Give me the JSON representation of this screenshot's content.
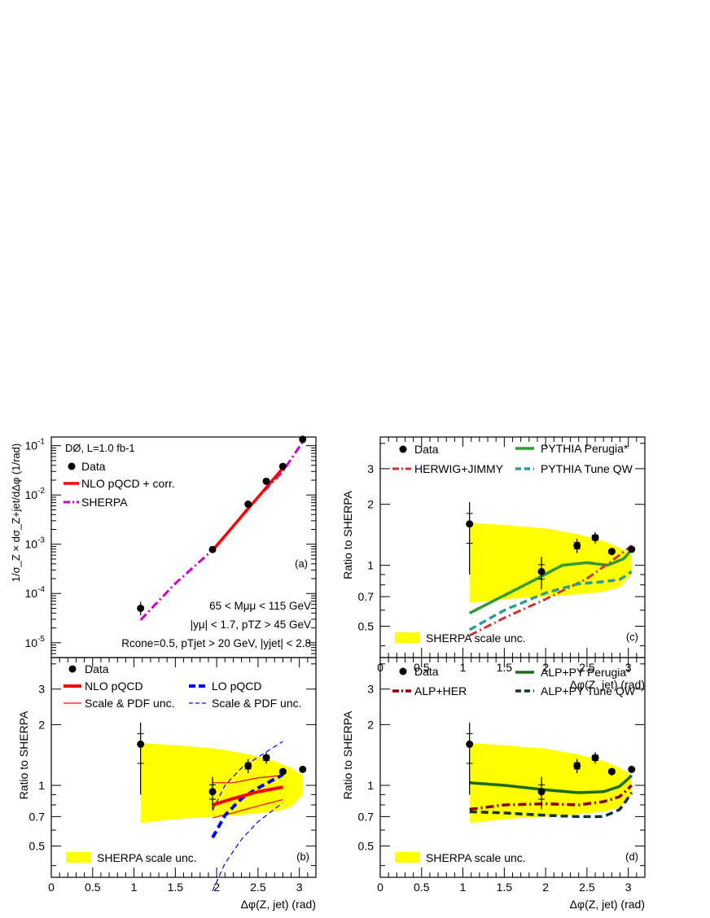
{
  "colors": {
    "yellow_band": "#ffff00",
    "red": "#ff0000",
    "magenta": "#cc00cc",
    "blue": "#0000ff",
    "green": "#339933",
    "darkgreen": "#1a6b1a",
    "teal": "#339999",
    "brownred": "#cc3333",
    "darkred": "#8b0000",
    "darkslate": "#0d3333"
  },
  "x_axis": {
    "label": "Δφ(Z, jet) (rad)",
    "ticks": [
      "0",
      "0.5",
      "1",
      "1.5",
      "2",
      "2.5",
      "3"
    ]
  },
  "chart_data": [
    {
      "id": "a",
      "type": "scatter",
      "panel_label": "(a)",
      "ylabel": "1/σ_Z × dσ_Z+jet/dΔφ (1/rad)",
      "yscale": "log",
      "ylim": [
        5e-06,
        0.15
      ],
      "xlim": [
        0,
        3.2
      ],
      "ytick_labels": [
        "10^-5",
        "10^-4",
        "10^-3",
        "10^-2",
        "10^-1"
      ],
      "experiment": "DØ, L=1.0 fb-1",
      "cuts": [
        "65 < Mμμ < 115 GeV",
        "|yμ| < 1.7, pTZ > 45 GeV",
        "Rcone=0.5, pTjet > 20 GeV, |yjet| < 2.8"
      ],
      "legend": [
        "Data",
        "NLO pQCD + corr.",
        "SHERPA"
      ],
      "data": {
        "x": [
          1.08,
          1.95,
          2.38,
          2.6,
          2.8,
          3.04
        ],
        "y": [
          5e-05,
          0.00078,
          0.0065,
          0.019,
          0.038,
          0.135
        ]
      },
      "nlo": {
        "x": [
          1.95,
          2.8
        ],
        "y": [
          0.00075,
          0.035
        ]
      },
      "sherpa": {
        "x": [
          1.08,
          1.5,
          2.0,
          2.4,
          2.8,
          3.04
        ],
        "y": [
          2.9e-05,
          0.00016,
          0.0009,
          0.006,
          0.03,
          0.12
        ]
      }
    },
    {
      "id": "b",
      "type": "line",
      "panel_label": "(b)",
      "ylabel": "Ratio to SHERPA",
      "yscale": "log",
      "ylim": [
        0.35,
        4.3
      ],
      "xlim": [
        0,
        3.2
      ],
      "ytick_labels": [
        "0.5",
        "0.7",
        "1",
        "2",
        "3"
      ],
      "legend": [
        "Data",
        "NLO pQCD",
        "Scale & PDF unc.",
        "LO pQCD",
        "Scale & PDF unc."
      ],
      "band_label": "SHERPA scale unc.",
      "band": {
        "x": [
          1.08,
          1.5,
          2.0,
          2.4,
          2.7,
          2.9,
          3.04
        ],
        "upper": [
          1.62,
          1.58,
          1.52,
          1.42,
          1.32,
          1.22,
          1.12
        ],
        "lower": [
          0.65,
          0.68,
          0.7,
          0.72,
          0.74,
          0.78,
          0.9
        ]
      },
      "data": {
        "x": [
          1.08,
          1.95,
          2.38,
          2.6,
          2.8,
          3.04
        ],
        "y": [
          1.6,
          0.93,
          1.25,
          1.37,
          1.17,
          1.2
        ],
        "yerr_up": [
          0.45,
          0.17,
          0.1,
          0.09,
          0.05,
          0.02
        ],
        "yerr_dn": [
          0.7,
          0.17,
          0.1,
          0.09,
          0.05,
          0.02
        ]
      },
      "nlo": {
        "x": [
          1.95,
          2.2,
          2.5,
          2.8
        ],
        "y": [
          0.8,
          0.86,
          0.93,
          0.98
        ]
      },
      "nlo_up": {
        "x": [
          1.95,
          2.2,
          2.5,
          2.8
        ],
        "y": [
          1.03,
          1.03,
          1.09,
          1.12
        ]
      },
      "nlo_dn": {
        "x": [
          1.95,
          2.2,
          2.5,
          2.8
        ],
        "y": [
          0.69,
          0.73,
          0.79,
          0.85
        ]
      },
      "lo": {
        "x": [
          1.95,
          2.1,
          2.3,
          2.5,
          2.8
        ],
        "y": [
          0.55,
          0.71,
          0.86,
          0.97,
          1.13
        ]
      },
      "lo_up": {
        "x": [
          1.95,
          2.1,
          2.3,
          2.5,
          2.8
        ],
        "y": [
          0.75,
          1.0,
          1.22,
          1.38,
          1.65
        ]
      },
      "lo_dn": {
        "x": [
          1.95,
          2.1,
          2.3,
          2.5,
          2.8
        ],
        "y": [
          0.3,
          0.41,
          0.54,
          0.66,
          0.82
        ]
      }
    },
    {
      "id": "c",
      "type": "line",
      "panel_label": "(c)",
      "ylabel": "Ratio to SHERPA",
      "yscale": "log",
      "ylim": [
        0.35,
        4.3
      ],
      "xlim": [
        0,
        3.2
      ],
      "ytick_labels": [
        "0.5",
        "0.7",
        "1",
        "2",
        "3"
      ],
      "legend": [
        "Data",
        "PYTHIA Perugia*",
        "HERWIG+JIMMY",
        "PYTHIA Tune QW"
      ],
      "band_label": "SHERPA scale unc.",
      "band": {
        "x": [
          1.08,
          1.5,
          2.0,
          2.4,
          2.7,
          2.9,
          3.04
        ],
        "upper": [
          1.62,
          1.58,
          1.52,
          1.42,
          1.32,
          1.22,
          1.12
        ],
        "lower": [
          0.65,
          0.68,
          0.7,
          0.72,
          0.74,
          0.78,
          0.9
        ]
      },
      "data": {
        "x": [
          1.08,
          1.95,
          2.38,
          2.6,
          2.8,
          3.04
        ],
        "y": [
          1.6,
          0.93,
          1.25,
          1.37,
          1.17,
          1.2
        ],
        "yerr_up": [
          0.45,
          0.17,
          0.1,
          0.09,
          0.05,
          0.02
        ],
        "yerr_dn": [
          0.7,
          0.17,
          0.1,
          0.09,
          0.05,
          0.02
        ]
      },
      "series": [
        {
          "name": "PYTHIA Perugia*",
          "style": "green_solid",
          "x": [
            1.08,
            1.5,
            1.9,
            2.2,
            2.5,
            2.75,
            2.95,
            3.04
          ],
          "y": [
            0.58,
            0.71,
            0.86,
            1.0,
            1.03,
            1.0,
            1.08,
            1.2
          ]
        },
        {
          "name": "HERWIG+JIMMY",
          "style": "brown_dashdot",
          "x": [
            1.08,
            1.5,
            2.0,
            2.5,
            2.8,
            3.04
          ],
          "y": [
            0.45,
            0.55,
            0.68,
            0.86,
            1.05,
            1.25
          ]
        },
        {
          "name": "PYTHIA Tune QW",
          "style": "teal_dashed",
          "x": [
            1.08,
            1.5,
            2.0,
            2.4,
            2.7,
            2.9,
            3.04
          ],
          "y": [
            0.48,
            0.6,
            0.73,
            0.81,
            0.83,
            0.85,
            0.93
          ]
        }
      ]
    },
    {
      "id": "d",
      "type": "line",
      "panel_label": "(d)",
      "ylabel": "Ratio to SHERPA",
      "yscale": "log",
      "ylim": [
        0.35,
        4.3
      ],
      "xlim": [
        0,
        3.2
      ],
      "ytick_labels": [
        "0.5",
        "0.7",
        "1",
        "2",
        "3"
      ],
      "legend": [
        "Data",
        "ALP+PY Perugia*",
        "ALP+HER",
        "ALP+PY Tune QW"
      ],
      "band_label": "SHERPA scale unc.",
      "band": {
        "x": [
          1.08,
          1.5,
          2.0,
          2.4,
          2.7,
          2.9,
          3.04
        ],
        "upper": [
          1.62,
          1.58,
          1.52,
          1.42,
          1.32,
          1.22,
          1.12
        ],
        "lower": [
          0.65,
          0.68,
          0.7,
          0.72,
          0.74,
          0.78,
          0.9
        ]
      },
      "data": {
        "x": [
          1.08,
          1.95,
          2.38,
          2.6,
          2.8,
          3.04
        ],
        "y": [
          1.6,
          0.93,
          1.25,
          1.37,
          1.17,
          1.2
        ],
        "yerr_up": [
          0.45,
          0.17,
          0.1,
          0.09,
          0.05,
          0.02
        ],
        "yerr_dn": [
          0.7,
          0.17,
          0.1,
          0.09,
          0.05,
          0.02
        ]
      },
      "series": [
        {
          "name": "ALP+PY Perugia*",
          "style": "darkgreen_solid",
          "x": [
            1.08,
            1.5,
            2.0,
            2.4,
            2.7,
            2.9,
            3.04
          ],
          "y": [
            1.03,
            1.0,
            0.95,
            0.92,
            0.93,
            0.99,
            1.12
          ]
        },
        {
          "name": "ALP+HER",
          "style": "darkred_dashdot",
          "x": [
            1.08,
            1.5,
            2.0,
            2.4,
            2.7,
            2.9,
            3.04
          ],
          "y": [
            0.76,
            0.8,
            0.81,
            0.8,
            0.83,
            0.88,
            1.0
          ]
        },
        {
          "name": "ALP+PY Tune QW",
          "style": "darkslate_dashed",
          "x": [
            1.08,
            1.5,
            2.0,
            2.4,
            2.7,
            2.9,
            3.04
          ],
          "y": [
            0.74,
            0.73,
            0.71,
            0.7,
            0.7,
            0.76,
            0.92
          ]
        }
      ]
    }
  ]
}
